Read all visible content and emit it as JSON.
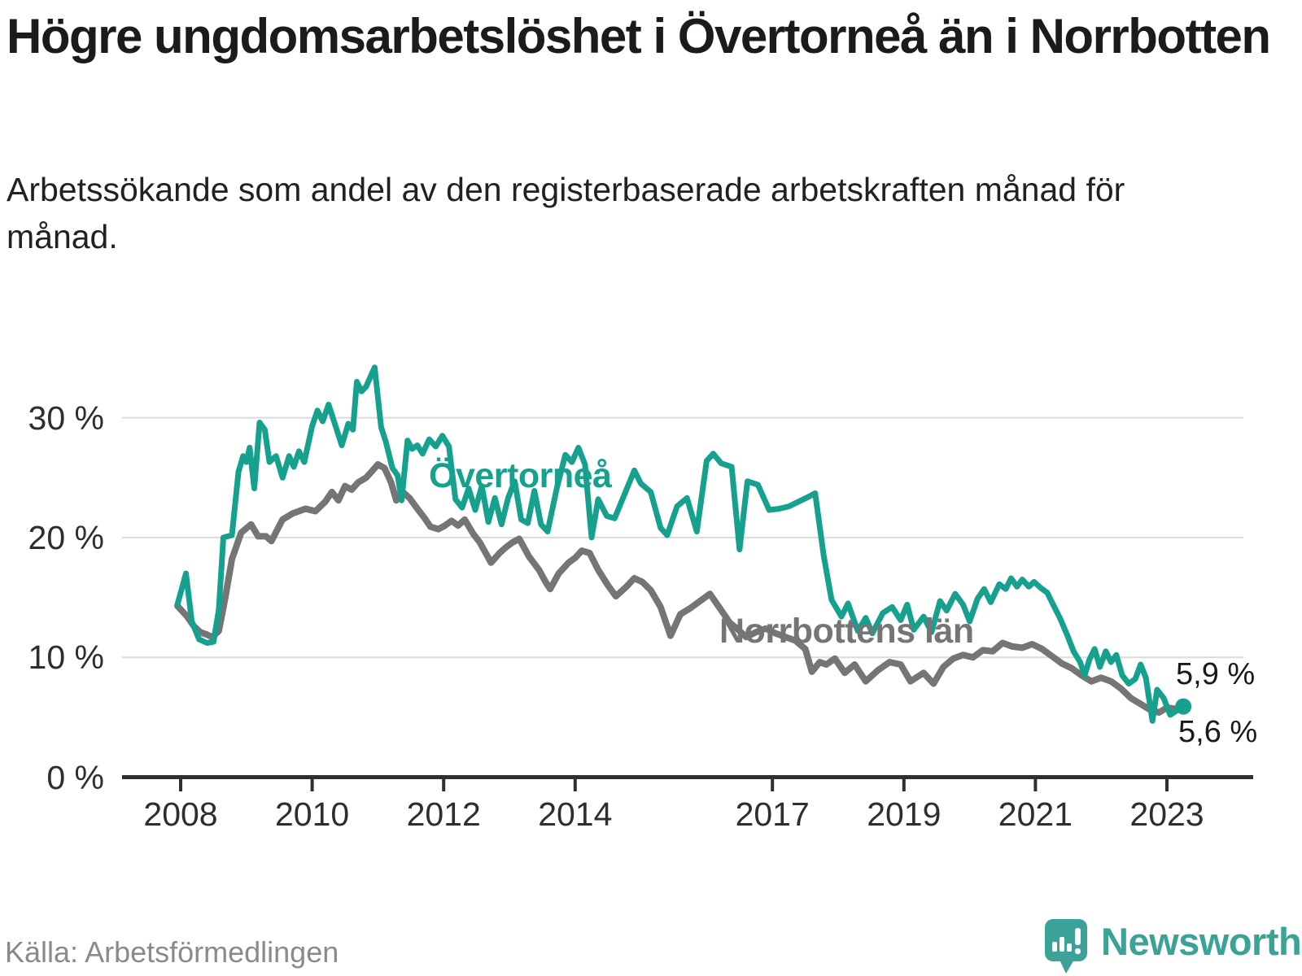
{
  "header": {
    "title": "Högre ungdomsarbetslöshet i Övertorneå än i Norrbotten",
    "subtitle": "Arbetssökande som andel av den registerbaserade arbetskraften månad för månad."
  },
  "footer": {
    "source": "Källa: Arbetsförmedlingen",
    "brand": "Newsworthy"
  },
  "colors": {
    "overtornea": "#16A08E",
    "norrbotten": "#757575",
    "grid": "#DBDBDB",
    "axis": "#2F2F2F",
    "tick_text": "#2E2E2E",
    "end_label_text": "#191919",
    "brand_teal": "#3BA297",
    "source_text": "#8A8A8A"
  },
  "chart_data": {
    "type": "line",
    "title": "Högre ungdomsarbetslöshet i Övertorneå än i Norrbotten",
    "subtitle": "Arbetssökande som andel av den registerbaserade arbetskraften månad för månad.",
    "xlabel": "",
    "ylabel": "%",
    "grid": "horizontal",
    "legend_position": "inline-labels",
    "xlim": [
      2007.9,
      2023.6
    ],
    "ylim": [
      0,
      35
    ],
    "yticks": [
      {
        "value": 0,
        "label": "0 %"
      },
      {
        "value": 10,
        "label": "10 %"
      },
      {
        "value": 20,
        "label": "20 %"
      },
      {
        "value": 30,
        "label": "30 %"
      }
    ],
    "xticks": [
      {
        "value": 2008,
        "label": "2008"
      },
      {
        "value": 2010,
        "label": "2010"
      },
      {
        "value": 2012,
        "label": "2012"
      },
      {
        "value": 2014,
        "label": "2014"
      },
      {
        "value": 2017,
        "label": "2017"
      },
      {
        "value": 2019,
        "label": "2019"
      },
      {
        "value": 2021,
        "label": "2021"
      },
      {
        "value": 2023,
        "label": "2023"
      }
    ],
    "series": [
      {
        "name": "Övertorneå",
        "color": "#16A08E",
        "end_label": "5,9 %",
        "end_value": 5.9,
        "points": [
          [
            2007.95,
            14.4
          ],
          [
            2008.08,
            17.0
          ],
          [
            2008.17,
            13.0
          ],
          [
            2008.28,
            11.5
          ],
          [
            2008.4,
            11.2
          ],
          [
            2008.5,
            11.3
          ],
          [
            2008.58,
            14.0
          ],
          [
            2008.65,
            20.0
          ],
          [
            2008.78,
            20.2
          ],
          [
            2008.88,
            25.5
          ],
          [
            2008.95,
            26.8
          ],
          [
            2009.0,
            26.3
          ],
          [
            2009.05,
            27.5
          ],
          [
            2009.12,
            24.1
          ],
          [
            2009.2,
            29.6
          ],
          [
            2009.28,
            29.0
          ],
          [
            2009.35,
            26.3
          ],
          [
            2009.45,
            26.8
          ],
          [
            2009.55,
            25.0
          ],
          [
            2009.65,
            26.8
          ],
          [
            2009.72,
            25.9
          ],
          [
            2009.8,
            27.2
          ],
          [
            2009.88,
            26.3
          ],
          [
            2010.0,
            29.3
          ],
          [
            2010.08,
            30.6
          ],
          [
            2010.16,
            29.7
          ],
          [
            2010.25,
            31.1
          ],
          [
            2010.35,
            29.4
          ],
          [
            2010.45,
            27.7
          ],
          [
            2010.55,
            29.5
          ],
          [
            2010.62,
            29.0
          ],
          [
            2010.68,
            33.0
          ],
          [
            2010.75,
            32.2
          ],
          [
            2010.82,
            32.6
          ],
          [
            2010.95,
            34.2
          ],
          [
            2011.05,
            29.2
          ],
          [
            2011.12,
            28.0
          ],
          [
            2011.22,
            25.8
          ],
          [
            2011.3,
            25.2
          ],
          [
            2011.36,
            23.1
          ],
          [
            2011.45,
            28.1
          ],
          [
            2011.52,
            27.4
          ],
          [
            2011.6,
            27.7
          ],
          [
            2011.68,
            27.0
          ],
          [
            2011.78,
            28.2
          ],
          [
            2011.88,
            27.6
          ],
          [
            2011.98,
            28.5
          ],
          [
            2012.08,
            27.6
          ],
          [
            2012.18,
            23.2
          ],
          [
            2012.28,
            22.5
          ],
          [
            2012.38,
            24.1
          ],
          [
            2012.48,
            22.3
          ],
          [
            2012.58,
            24.3
          ],
          [
            2012.68,
            21.3
          ],
          [
            2012.78,
            23.3
          ],
          [
            2012.88,
            21.1
          ],
          [
            2012.98,
            23.3
          ],
          [
            2013.08,
            24.7
          ],
          [
            2013.18,
            21.5
          ],
          [
            2013.28,
            21.2
          ],
          [
            2013.38,
            23.9
          ],
          [
            2013.48,
            21.1
          ],
          [
            2013.58,
            20.5
          ],
          [
            2013.72,
            24.1
          ],
          [
            2013.85,
            26.9
          ],
          [
            2013.95,
            26.3
          ],
          [
            2014.05,
            27.5
          ],
          [
            2014.15,
            26.1
          ],
          [
            2014.25,
            20.0
          ],
          [
            2014.35,
            23.2
          ],
          [
            2014.48,
            21.8
          ],
          [
            2014.6,
            21.6
          ],
          [
            2014.75,
            23.6
          ],
          [
            2014.9,
            25.6
          ],
          [
            2015.0,
            24.5
          ],
          [
            2015.15,
            23.8
          ],
          [
            2015.3,
            20.8
          ],
          [
            2015.4,
            20.2
          ],
          [
            2015.55,
            22.6
          ],
          [
            2015.7,
            23.3
          ],
          [
            2015.85,
            20.5
          ],
          [
            2016.0,
            26.4
          ],
          [
            2016.1,
            27.0
          ],
          [
            2016.22,
            26.2
          ],
          [
            2016.38,
            25.9
          ],
          [
            2016.5,
            19.0
          ],
          [
            2016.62,
            24.7
          ],
          [
            2016.78,
            24.4
          ],
          [
            2016.95,
            22.3
          ],
          [
            2017.1,
            22.4
          ],
          [
            2017.25,
            22.6
          ],
          [
            2017.4,
            23.0
          ],
          [
            2017.55,
            23.4
          ],
          [
            2017.65,
            23.7
          ],
          [
            2017.78,
            18.5
          ],
          [
            2017.9,
            14.8
          ],
          [
            2018.05,
            13.4
          ],
          [
            2018.15,
            14.5
          ],
          [
            2018.3,
            12.2
          ],
          [
            2018.42,
            13.3
          ],
          [
            2018.52,
            12.0
          ],
          [
            2018.68,
            13.7
          ],
          [
            2018.82,
            14.2
          ],
          [
            2018.95,
            13.1
          ],
          [
            2019.05,
            14.4
          ],
          [
            2019.15,
            12.3
          ],
          [
            2019.3,
            13.4
          ],
          [
            2019.42,
            12.1
          ],
          [
            2019.55,
            14.7
          ],
          [
            2019.65,
            13.9
          ],
          [
            2019.78,
            15.3
          ],
          [
            2019.9,
            14.4
          ],
          [
            2020.0,
            13.0
          ],
          [
            2020.12,
            14.9
          ],
          [
            2020.22,
            15.7
          ],
          [
            2020.32,
            14.6
          ],
          [
            2020.45,
            16.1
          ],
          [
            2020.55,
            15.7
          ],
          [
            2020.63,
            16.6
          ],
          [
            2020.72,
            15.9
          ],
          [
            2020.8,
            16.5
          ],
          [
            2020.9,
            15.9
          ],
          [
            2020.98,
            16.3
          ],
          [
            2021.08,
            15.8
          ],
          [
            2021.18,
            15.4
          ],
          [
            2021.28,
            14.3
          ],
          [
            2021.38,
            13.2
          ],
          [
            2021.48,
            11.9
          ],
          [
            2021.58,
            10.5
          ],
          [
            2021.68,
            9.6
          ],
          [
            2021.75,
            8.5
          ],
          [
            2021.82,
            9.8
          ],
          [
            2021.9,
            10.7
          ],
          [
            2021.98,
            9.2
          ],
          [
            2022.07,
            10.5
          ],
          [
            2022.15,
            9.6
          ],
          [
            2022.23,
            10.2
          ],
          [
            2022.32,
            8.5
          ],
          [
            2022.42,
            7.8
          ],
          [
            2022.52,
            8.2
          ],
          [
            2022.6,
            9.4
          ],
          [
            2022.68,
            8.3
          ],
          [
            2022.78,
            4.7
          ],
          [
            2022.85,
            7.3
          ],
          [
            2022.95,
            6.6
          ],
          [
            2023.05,
            5.2
          ],
          [
            2023.25,
            5.9
          ]
        ]
      },
      {
        "name": "Norrbottens län",
        "color": "#757575",
        "end_label": "5,6 %",
        "end_value": 5.6,
        "points": [
          [
            2007.95,
            14.3
          ],
          [
            2008.1,
            13.4
          ],
          [
            2008.2,
            12.6
          ],
          [
            2008.3,
            12.1
          ],
          [
            2008.4,
            11.9
          ],
          [
            2008.48,
            11.7
          ],
          [
            2008.58,
            12.2
          ],
          [
            2008.68,
            15.0
          ],
          [
            2008.78,
            18.2
          ],
          [
            2008.92,
            20.4
          ],
          [
            2009.07,
            21.1
          ],
          [
            2009.18,
            20.1
          ],
          [
            2009.3,
            20.1
          ],
          [
            2009.38,
            19.7
          ],
          [
            2009.55,
            21.5
          ],
          [
            2009.7,
            22.0
          ],
          [
            2009.9,
            22.4
          ],
          [
            2010.05,
            22.2
          ],
          [
            2010.2,
            23.0
          ],
          [
            2010.3,
            23.8
          ],
          [
            2010.4,
            23.1
          ],
          [
            2010.5,
            24.3
          ],
          [
            2010.6,
            24.0
          ],
          [
            2010.7,
            24.6
          ],
          [
            2010.82,
            25.0
          ],
          [
            2010.92,
            25.6
          ],
          [
            2011.0,
            26.1
          ],
          [
            2011.1,
            25.8
          ],
          [
            2011.2,
            24.6
          ],
          [
            2011.28,
            23.1
          ],
          [
            2011.38,
            23.8
          ],
          [
            2011.48,
            23.3
          ],
          [
            2011.6,
            22.4
          ],
          [
            2011.7,
            21.7
          ],
          [
            2011.8,
            20.9
          ],
          [
            2011.92,
            20.7
          ],
          [
            2012.02,
            21.0
          ],
          [
            2012.12,
            21.4
          ],
          [
            2012.22,
            21.0
          ],
          [
            2012.32,
            21.5
          ],
          [
            2012.45,
            20.3
          ],
          [
            2012.55,
            19.6
          ],
          [
            2012.65,
            18.6
          ],
          [
            2012.72,
            17.9
          ],
          [
            2012.85,
            18.7
          ],
          [
            2012.95,
            19.2
          ],
          [
            2013.05,
            19.6
          ],
          [
            2013.15,
            19.9
          ],
          [
            2013.3,
            18.4
          ],
          [
            2013.45,
            17.3
          ],
          [
            2013.55,
            16.3
          ],
          [
            2013.62,
            15.7
          ],
          [
            2013.75,
            17.0
          ],
          [
            2013.9,
            17.9
          ],
          [
            2014.0,
            18.3
          ],
          [
            2014.1,
            18.9
          ],
          [
            2014.22,
            18.7
          ],
          [
            2014.35,
            17.3
          ],
          [
            2014.5,
            16.0
          ],
          [
            2014.62,
            15.1
          ],
          [
            2014.78,
            15.9
          ],
          [
            2014.9,
            16.6
          ],
          [
            2015.02,
            16.3
          ],
          [
            2015.15,
            15.6
          ],
          [
            2015.3,
            14.2
          ],
          [
            2015.45,
            11.8
          ],
          [
            2015.6,
            13.6
          ],
          [
            2015.75,
            14.1
          ],
          [
            2015.9,
            14.7
          ],
          [
            2016.05,
            15.3
          ],
          [
            2016.2,
            14.1
          ],
          [
            2016.35,
            12.9
          ],
          [
            2016.48,
            12.3
          ],
          [
            2016.6,
            11.7
          ],
          [
            2016.75,
            12.1
          ],
          [
            2016.9,
            12.4
          ],
          [
            2017.05,
            12.0
          ],
          [
            2017.2,
            11.7
          ],
          [
            2017.35,
            11.4
          ],
          [
            2017.5,
            10.7
          ],
          [
            2017.6,
            8.8
          ],
          [
            2017.72,
            9.6
          ],
          [
            2017.82,
            9.4
          ],
          [
            2017.95,
            9.9
          ],
          [
            2018.1,
            8.7
          ],
          [
            2018.25,
            9.4
          ],
          [
            2018.42,
            8.0
          ],
          [
            2018.6,
            8.9
          ],
          [
            2018.78,
            9.6
          ],
          [
            2018.95,
            9.4
          ],
          [
            2019.1,
            8.0
          ],
          [
            2019.3,
            8.7
          ],
          [
            2019.45,
            7.8
          ],
          [
            2019.6,
            9.2
          ],
          [
            2019.75,
            9.9
          ],
          [
            2019.9,
            10.2
          ],
          [
            2020.05,
            10.0
          ],
          [
            2020.2,
            10.6
          ],
          [
            2020.35,
            10.5
          ],
          [
            2020.5,
            11.2
          ],
          [
            2020.65,
            10.9
          ],
          [
            2020.8,
            10.8
          ],
          [
            2020.95,
            11.1
          ],
          [
            2021.1,
            10.7
          ],
          [
            2021.25,
            10.1
          ],
          [
            2021.4,
            9.5
          ],
          [
            2021.55,
            9.1
          ],
          [
            2021.7,
            8.5
          ],
          [
            2021.85,
            8.0
          ],
          [
            2022.0,
            8.3
          ],
          [
            2022.15,
            8.0
          ],
          [
            2022.3,
            7.4
          ],
          [
            2022.45,
            6.6
          ],
          [
            2022.6,
            6.1
          ],
          [
            2022.75,
            5.6
          ],
          [
            2022.88,
            5.4
          ],
          [
            2023.0,
            5.8
          ],
          [
            2023.12,
            5.7
          ],
          [
            2023.3,
            5.6
          ]
        ]
      }
    ]
  }
}
